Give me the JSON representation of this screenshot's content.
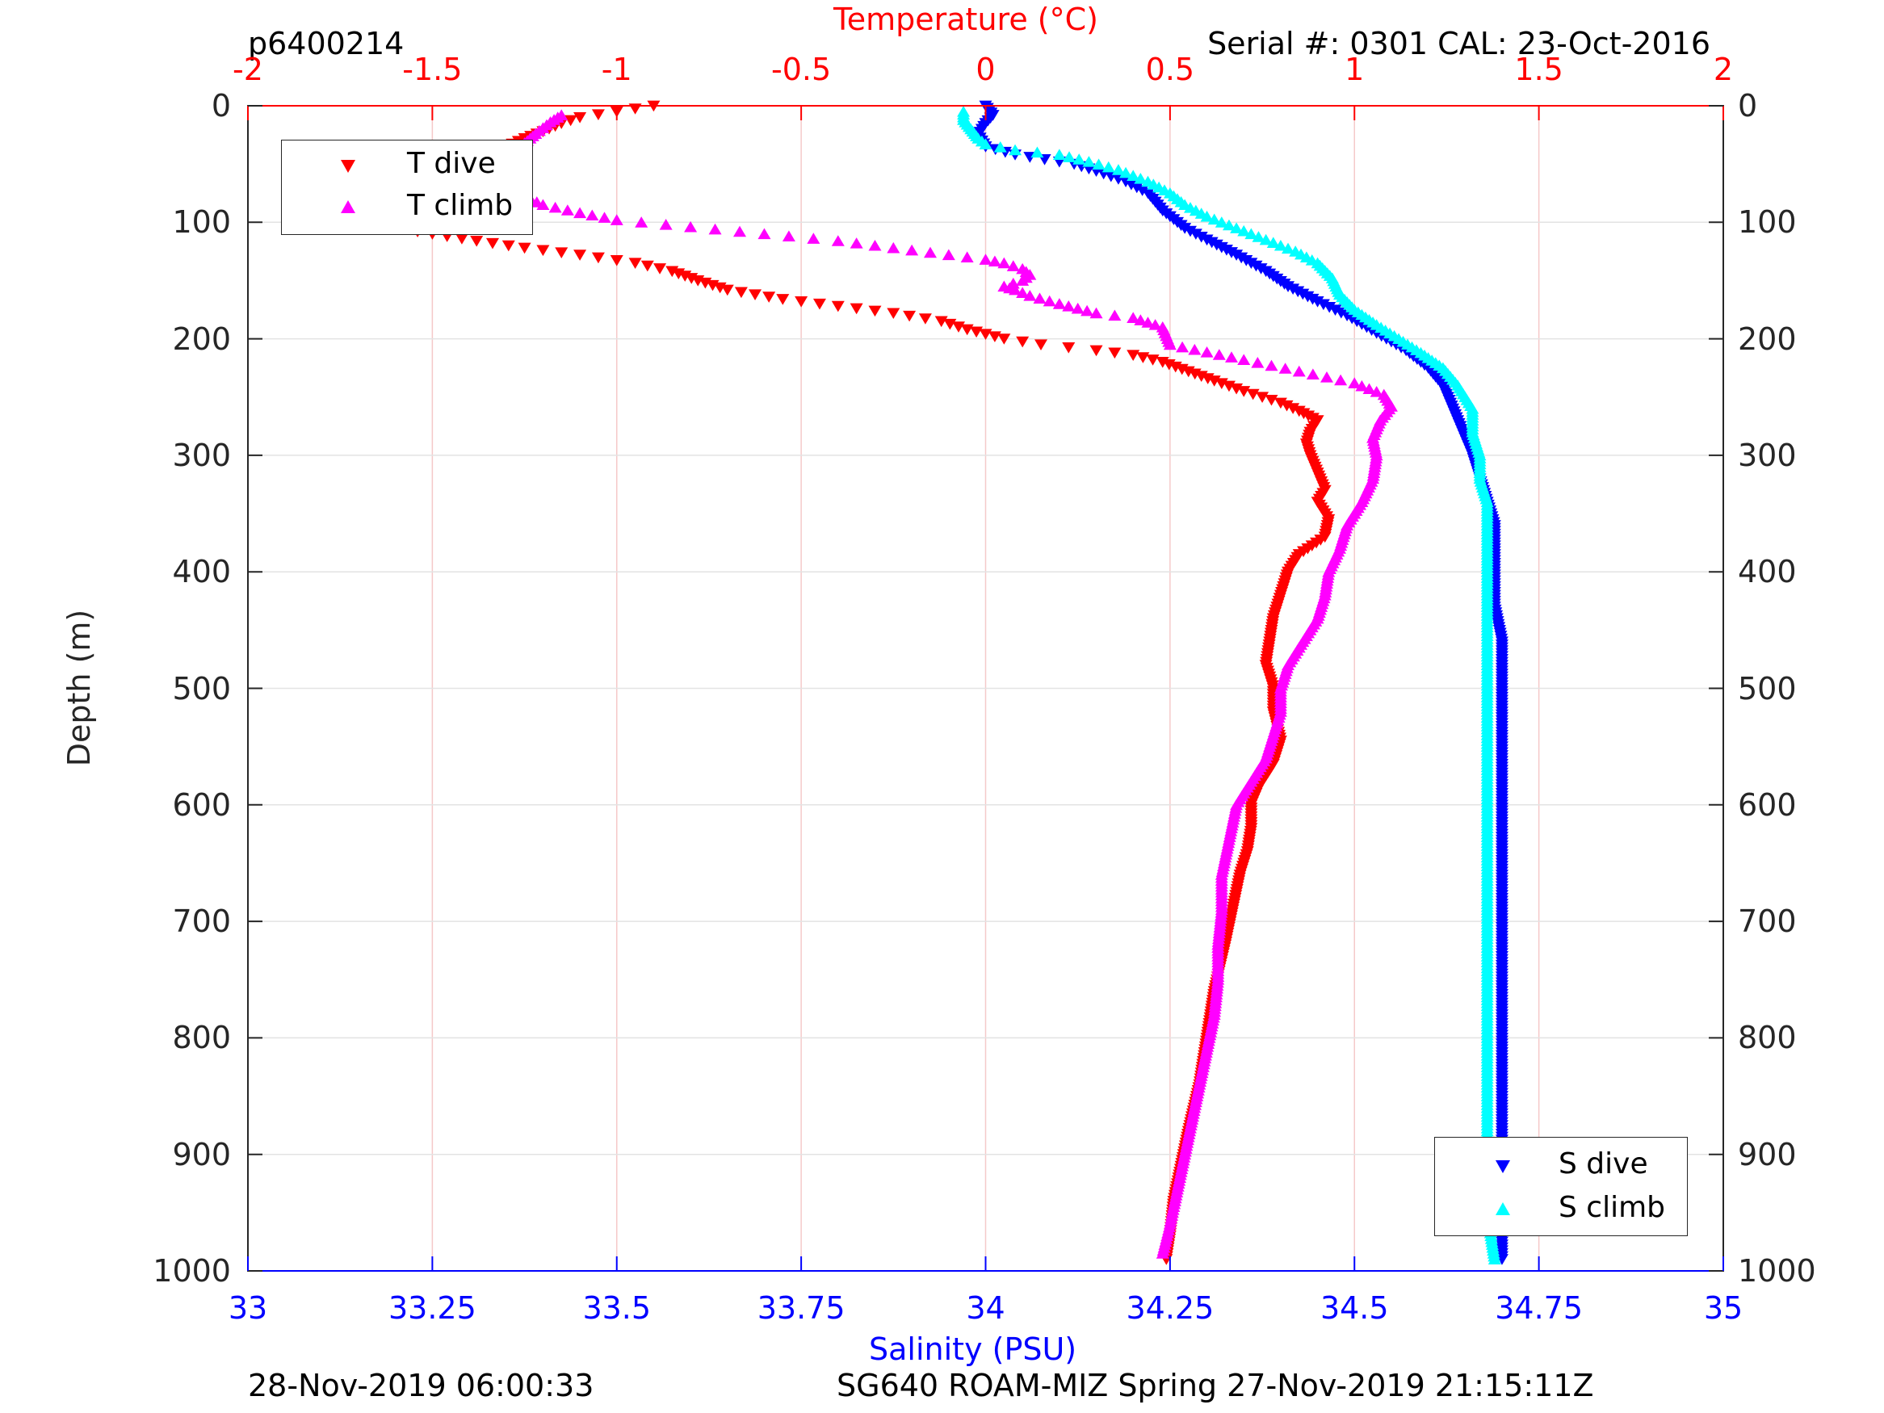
{
  "header": {
    "profile_id": "p6400214",
    "serial_cal": "Serial #: 0301  CAL: 23-Oct-2016"
  },
  "footer": {
    "left_timestamp": "28-Nov-2019 06:00:33",
    "right_mission": "SG640 ROAM-MIZ Spring 27-Nov-2019 21:15:11Z"
  },
  "colors": {
    "t_dive": "#ff0000",
    "t_climb": "#ff00ff",
    "s_dive": "#0000ff",
    "s_climb": "#00ffff",
    "temp_axis": "#ff0000",
    "sal_axis": "#0000ff",
    "depth_axis": "#262626"
  },
  "chart_data": {
    "type": "scatter",
    "title": "",
    "ylabel": "Depth (m)",
    "y_reversed": true,
    "ylim": [
      0,
      1000
    ],
    "y_ticks": [
      0,
      100,
      200,
      300,
      400,
      500,
      600,
      700,
      800,
      900,
      1000
    ],
    "top_axis": {
      "label": "Temperature (°C)",
      "lim": [
        -2,
        2
      ],
      "ticks": [
        -2,
        -1.5,
        -1,
        -0.5,
        0,
        0.5,
        1,
        1.5,
        2
      ],
      "tick_labels": [
        "-2",
        "-1.5",
        "-1",
        "-0.5",
        "0",
        "0.5",
        "1",
        "1.5",
        "2"
      ]
    },
    "bottom_axis": {
      "label": "Salinity (PSU)",
      "lim": [
        33,
        35
      ],
      "ticks": [
        33,
        33.25,
        33.5,
        33.75,
        34,
        34.25,
        34.5,
        34.75,
        35
      ],
      "tick_labels": [
        "33",
        "33.25",
        "33.5",
        "33.75",
        "34",
        "34.25",
        "34.5",
        "34.75",
        "35"
      ]
    },
    "grid": true,
    "legends": [
      {
        "placement": "top-left",
        "entries": [
          "T dive",
          "T climb"
        ]
      },
      {
        "placement": "bottom-right",
        "entries": [
          "S dive",
          "S climb"
        ]
      }
    ],
    "series": [
      {
        "name": "T dive",
        "axis": "temperature",
        "marker": "triangle-down",
        "points": [
          [
            -0.9,
            0
          ],
          [
            -1.0,
            5
          ],
          [
            -1.1,
            10
          ],
          [
            -1.15,
            15
          ],
          [
            -1.2,
            22
          ],
          [
            -1.25,
            28
          ],
          [
            -1.3,
            35
          ],
          [
            -1.35,
            40
          ],
          [
            -1.42,
            45
          ],
          [
            -1.5,
            52
          ],
          [
            -1.58,
            58
          ],
          [
            -1.62,
            66
          ],
          [
            -1.66,
            75
          ],
          [
            -1.7,
            83
          ],
          [
            -1.72,
            88
          ],
          [
            -1.7,
            92
          ],
          [
            -1.68,
            98
          ],
          [
            -1.62,
            104
          ],
          [
            -1.5,
            110
          ],
          [
            -1.38,
            116
          ],
          [
            -1.25,
            122
          ],
          [
            -1.1,
            128
          ],
          [
            -0.95,
            135
          ],
          [
            -0.85,
            142
          ],
          [
            -0.78,
            150
          ],
          [
            -0.7,
            158
          ],
          [
            -0.55,
            166
          ],
          [
            -0.4,
            172
          ],
          [
            -0.25,
            178
          ],
          [
            -0.12,
            185
          ],
          [
            -0.05,
            192
          ],
          [
            0.05,
            200
          ],
          [
            0.15,
            205
          ],
          [
            0.3,
            210
          ],
          [
            0.4,
            214
          ],
          [
            0.48,
            220
          ],
          [
            0.55,
            228
          ],
          [
            0.62,
            236
          ],
          [
            0.7,
            245
          ],
          [
            0.8,
            255
          ],
          [
            0.85,
            262
          ],
          [
            0.9,
            270
          ],
          [
            0.88,
            280
          ],
          [
            0.87,
            290
          ],
          [
            0.88,
            300
          ],
          [
            0.9,
            315
          ],
          [
            0.92,
            330
          ],
          [
            0.9,
            340
          ],
          [
            0.93,
            355
          ],
          [
            0.92,
            370
          ],
          [
            0.85,
            385
          ],
          [
            0.82,
            400
          ],
          [
            0.8,
            420
          ],
          [
            0.78,
            440
          ],
          [
            0.77,
            460
          ],
          [
            0.76,
            480
          ],
          [
            0.78,
            500
          ],
          [
            0.78,
            520
          ],
          [
            0.8,
            545
          ],
          [
            0.78,
            565
          ],
          [
            0.74,
            585
          ],
          [
            0.72,
            600
          ],
          [
            0.72,
            620
          ],
          [
            0.71,
            640
          ],
          [
            0.69,
            660
          ],
          [
            0.67,
            690
          ],
          [
            0.65,
            720
          ],
          [
            0.62,
            760
          ],
          [
            0.6,
            800
          ],
          [
            0.58,
            840
          ],
          [
            0.55,
            880
          ],
          [
            0.53,
            910
          ],
          [
            0.51,
            940
          ],
          [
            0.5,
            970
          ],
          [
            0.49,
            990
          ]
        ]
      },
      {
        "name": "T climb",
        "axis": "temperature",
        "marker": "triangle-up",
        "points": [
          [
            0.48,
            985
          ],
          [
            0.5,
            960
          ],
          [
            0.52,
            930
          ],
          [
            0.54,
            900
          ],
          [
            0.56,
            870
          ],
          [
            0.58,
            840
          ],
          [
            0.6,
            810
          ],
          [
            0.62,
            780
          ],
          [
            0.63,
            750
          ],
          [
            0.63,
            720
          ],
          [
            0.64,
            690
          ],
          [
            0.64,
            660
          ],
          [
            0.66,
            630
          ],
          [
            0.68,
            600
          ],
          [
            0.72,
            580
          ],
          [
            0.76,
            560
          ],
          [
            0.78,
            540
          ],
          [
            0.8,
            520
          ],
          [
            0.8,
            500
          ],
          [
            0.82,
            480
          ],
          [
            0.86,
            460
          ],
          [
            0.9,
            440
          ],
          [
            0.92,
            420
          ],
          [
            0.93,
            400
          ],
          [
            0.96,
            380
          ],
          [
            0.98,
            360
          ],
          [
            1.02,
            340
          ],
          [
            1.05,
            320
          ],
          [
            1.06,
            300
          ],
          [
            1.05,
            285
          ],
          [
            1.07,
            270
          ],
          [
            1.1,
            258
          ],
          [
            1.08,
            248
          ],
          [
            1.0,
            238
          ],
          [
            0.85,
            228
          ],
          [
            0.7,
            218
          ],
          [
            0.5,
            205
          ],
          [
            0.48,
            190
          ],
          [
            0.4,
            182
          ],
          [
            0.3,
            178
          ],
          [
            0.2,
            170
          ],
          [
            0.12,
            163
          ],
          [
            0.08,
            158
          ],
          [
            0.05,
            155
          ],
          [
            0.1,
            150
          ],
          [
            0.12,
            145
          ],
          [
            0.1,
            140
          ],
          [
            0.05,
            135
          ],
          [
            0.0,
            132
          ],
          [
            -0.1,
            128
          ],
          [
            -0.2,
            124
          ],
          [
            -0.3,
            120
          ],
          [
            -0.4,
            116
          ],
          [
            -0.6,
            110
          ],
          [
            -0.8,
            104
          ],
          [
            -1.0,
            98
          ],
          [
            -1.1,
            92
          ],
          [
            -1.2,
            85
          ],
          [
            -1.25,
            78
          ],
          [
            -1.3,
            72
          ],
          [
            -1.4,
            68
          ],
          [
            -1.5,
            64
          ],
          [
            -1.55,
            60
          ],
          [
            -1.5,
            55
          ],
          [
            -1.4,
            48
          ],
          [
            -1.3,
            40
          ],
          [
            -1.25,
            32
          ],
          [
            -1.22,
            24
          ],
          [
            -1.18,
            14
          ],
          [
            -1.15,
            8
          ]
        ]
      },
      {
        "name": "S dive",
        "axis": "salinity",
        "marker": "triangle-down",
        "points": [
          [
            34.0,
            0
          ],
          [
            34.01,
            8
          ],
          [
            34.0,
            15
          ],
          [
            33.99,
            25
          ],
          [
            34.0,
            35
          ],
          [
            34.04,
            42
          ],
          [
            34.08,
            46
          ],
          [
            34.12,
            50
          ],
          [
            34.15,
            56
          ],
          [
            34.19,
            65
          ],
          [
            34.22,
            75
          ],
          [
            34.24,
            90
          ],
          [
            34.27,
            105
          ],
          [
            34.3,
            115
          ],
          [
            34.34,
            128
          ],
          [
            34.38,
            142
          ],
          [
            34.41,
            155
          ],
          [
            34.45,
            168
          ],
          [
            34.49,
            180
          ],
          [
            34.53,
            195
          ],
          [
            34.57,
            210
          ],
          [
            34.6,
            225
          ],
          [
            34.62,
            240
          ],
          [
            34.63,
            255
          ],
          [
            34.64,
            270
          ],
          [
            34.65,
            285
          ],
          [
            34.66,
            300
          ],
          [
            34.67,
            320
          ],
          [
            34.68,
            340
          ],
          [
            34.69,
            360
          ],
          [
            34.69,
            380
          ],
          [
            34.69,
            400
          ],
          [
            34.69,
            430
          ],
          [
            34.7,
            460
          ],
          [
            34.7,
            490
          ],
          [
            34.7,
            520
          ],
          [
            34.7,
            560
          ],
          [
            34.7,
            600
          ],
          [
            34.7,
            650
          ],
          [
            34.7,
            700
          ],
          [
            34.7,
            750
          ],
          [
            34.7,
            800
          ],
          [
            34.7,
            850
          ],
          [
            34.7,
            900
          ],
          [
            34.7,
            950
          ],
          [
            34.7,
            990
          ]
        ]
      },
      {
        "name": "S climb",
        "axis": "salinity",
        "marker": "triangle-up",
        "points": [
          [
            34.69,
            990
          ],
          [
            34.68,
            950
          ],
          [
            34.68,
            900
          ],
          [
            34.68,
            850
          ],
          [
            34.68,
            800
          ],
          [
            34.68,
            750
          ],
          [
            34.68,
            700
          ],
          [
            34.68,
            650
          ],
          [
            34.68,
            600
          ],
          [
            34.68,
            560
          ],
          [
            34.68,
            520
          ],
          [
            34.68,
            490
          ],
          [
            34.68,
            460
          ],
          [
            34.68,
            430
          ],
          [
            34.68,
            400
          ],
          [
            34.68,
            380
          ],
          [
            34.68,
            360
          ],
          [
            34.68,
            340
          ],
          [
            34.67,
            320
          ],
          [
            34.67,
            300
          ],
          [
            34.66,
            280
          ],
          [
            34.66,
            260
          ],
          [
            34.64,
            240
          ],
          [
            34.62,
            225
          ],
          [
            34.59,
            212
          ],
          [
            34.56,
            200
          ],
          [
            34.53,
            188
          ],
          [
            34.5,
            175
          ],
          [
            34.48,
            162
          ],
          [
            34.47,
            148
          ],
          [
            34.45,
            135
          ],
          [
            34.42,
            125
          ],
          [
            34.38,
            115
          ],
          [
            34.34,
            105
          ],
          [
            34.3,
            95
          ],
          [
            34.27,
            85
          ],
          [
            34.25,
            75
          ],
          [
            34.22,
            65
          ],
          [
            34.18,
            55
          ],
          [
            34.14,
            48
          ],
          [
            34.1,
            42
          ],
          [
            34.04,
            38
          ],
          [
            34.0,
            33
          ],
          [
            33.99,
            28
          ],
          [
            33.98,
            20
          ],
          [
            33.97,
            12
          ],
          [
            33.97,
            5
          ]
        ]
      }
    ]
  }
}
